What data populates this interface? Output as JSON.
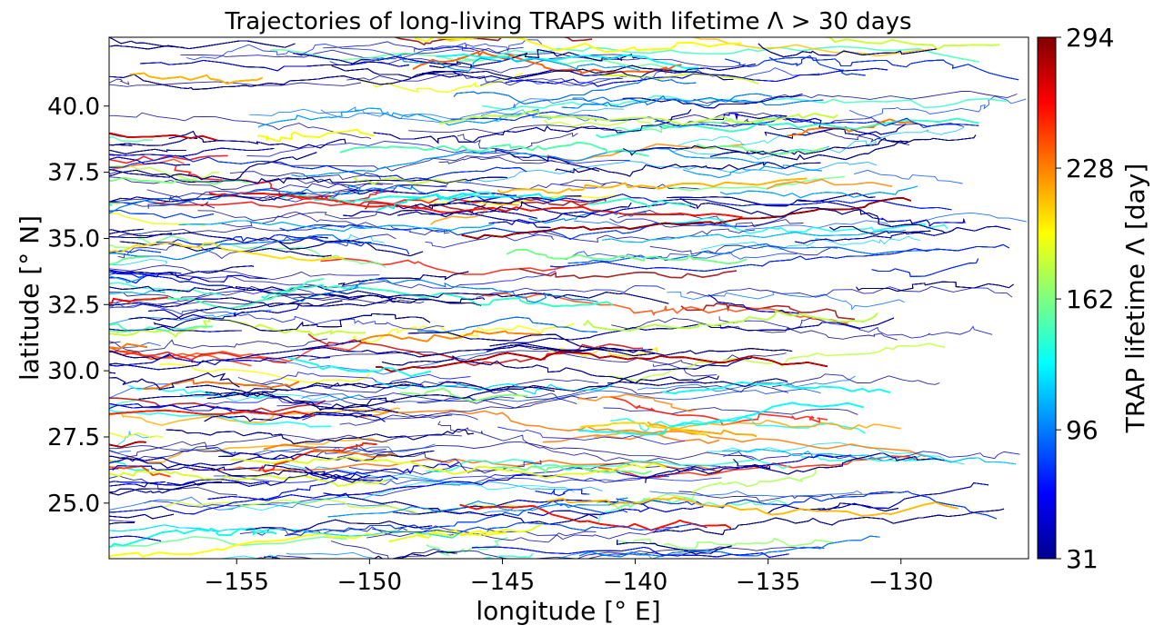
{
  "chart_data": {
    "type": "line",
    "title": "Trajectories of long-living TRAPS with lifetime Λ > 30 days",
    "xlabel": "longitude [° E]",
    "ylabel": "latitude [° N]",
    "xlim": [
      -159.8,
      -125.2
    ],
    "ylim": [
      22.9,
      42.6
    ],
    "xticks": [
      -155,
      -150,
      -145,
      -140,
      -135,
      -130
    ],
    "xtick_labels": [
      "−155",
      "−150",
      "−145",
      "−140",
      "−135",
      "−130"
    ],
    "yticks": [
      25.0,
      27.5,
      30.0,
      32.5,
      35.0,
      37.5,
      40.0
    ],
    "ytick_labels": [
      "25.0",
      "27.5",
      "30.0",
      "32.5",
      "35.0",
      "37.5",
      "40.0"
    ],
    "colorbar": {
      "label": "TRAP lifetime Λ [day]",
      "colormap": "jet",
      "range": [
        31,
        294
      ],
      "ticks": [
        31,
        96,
        162,
        228,
        294
      ],
      "tick_labels": [
        "31",
        "96",
        "162",
        "228",
        "294"
      ]
    },
    "grid": false,
    "description_of_marks": "dense field of thousands of trajectory polylines, each coloured by TRAP lifetime; mostly blue, few green/orange/red",
    "colors": {
      "jet_low": "#00008f",
      "jet_mid": "#00ffff",
      "jet_high": "#800000"
    }
  }
}
